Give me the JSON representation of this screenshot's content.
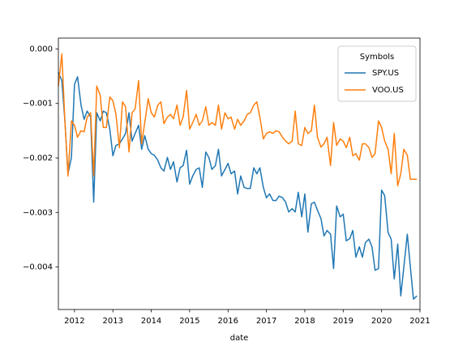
{
  "chart_data": {
    "type": "line",
    "xlabel": "date",
    "x": [
      2011.58,
      2011.67,
      2011.75,
      2011.83,
      2011.92,
      2012.0,
      2012.08,
      2012.17,
      2012.25,
      2012.33,
      2012.42,
      2012.5,
      2012.58,
      2012.67,
      2012.75,
      2012.83,
      2012.92,
      2013.0,
      2013.08,
      2013.17,
      2013.25,
      2013.33,
      2013.42,
      2013.5,
      2013.58,
      2013.67,
      2013.75,
      2013.83,
      2013.92,
      2014.0,
      2014.08,
      2014.17,
      2014.25,
      2014.33,
      2014.42,
      2014.5,
      2014.58,
      2014.67,
      2014.75,
      2014.83,
      2014.92,
      2015.0,
      2015.08,
      2015.17,
      2015.25,
      2015.33,
      2015.42,
      2015.5,
      2015.58,
      2015.67,
      2015.75,
      2015.83,
      2015.92,
      2016.0,
      2016.08,
      2016.17,
      2016.25,
      2016.33,
      2016.42,
      2016.5,
      2016.58,
      2016.67,
      2016.75,
      2016.83,
      2016.92,
      2017.0,
      2017.08,
      2017.17,
      2017.25,
      2017.33,
      2017.42,
      2017.5,
      2017.58,
      2017.67,
      2017.75,
      2017.83,
      2017.92,
      2018.0,
      2018.08,
      2018.17,
      2018.25,
      2018.33,
      2018.42,
      2018.5,
      2018.58,
      2018.67,
      2018.75,
      2018.83,
      2018.92,
      2019.0,
      2019.08,
      2019.17,
      2019.25,
      2019.33,
      2019.42,
      2019.5,
      2019.58,
      2019.67,
      2019.75,
      2019.83,
      2019.92,
      2020.0,
      2020.08,
      2020.17,
      2020.25,
      2020.33,
      2020.42,
      2020.5,
      2020.58,
      2020.67,
      2020.75,
      2020.83,
      2020.92
    ],
    "series": [
      {
        "name": "SPY.US",
        "color": "#1f77b4",
        "values": [
          -0.00043,
          -0.00058,
          -0.00132,
          -0.00229,
          -0.00199,
          -0.00065,
          -0.00051,
          -0.00103,
          -0.00129,
          -0.00114,
          -0.00125,
          -0.00281,
          -0.00117,
          -0.00132,
          -0.00114,
          -0.00117,
          -0.00147,
          -0.00196,
          -0.00177,
          -0.00174,
          -0.00165,
          -0.00155,
          -0.00117,
          -0.00169,
          -0.00155,
          -0.0014,
          -0.00184,
          -0.00159,
          -0.00184,
          -0.00192,
          -0.00195,
          -0.00204,
          -0.00218,
          -0.00224,
          -0.00199,
          -0.00221,
          -0.00207,
          -0.00244,
          -0.00218,
          -0.00214,
          -0.00186,
          -0.00248,
          -0.00233,
          -0.00221,
          -0.00218,
          -0.00254,
          -0.00189,
          -0.00199,
          -0.00221,
          -0.00214,
          -0.00184,
          -0.00233,
          -0.00221,
          -0.0021,
          -0.00229,
          -0.00224,
          -0.00266,
          -0.00233,
          -0.00254,
          -0.00256,
          -0.00256,
          -0.00218,
          -0.00229,
          -0.00218,
          -0.00254,
          -0.00273,
          -0.00266,
          -0.00278,
          -0.00278,
          -0.0027,
          -0.00273,
          -0.00281,
          -0.00299,
          -0.00293,
          -0.00299,
          -0.00263,
          -0.00308,
          -0.00266,
          -0.00336,
          -0.00284,
          -0.00281,
          -0.00296,
          -0.00311,
          -0.00343,
          -0.00333,
          -0.0034,
          -0.00403,
          -0.00288,
          -0.00308,
          -0.00303,
          -0.00352,
          -0.00348,
          -0.00333,
          -0.00382,
          -0.00363,
          -0.00382,
          -0.00355,
          -0.00349,
          -0.00363,
          -0.00406,
          -0.00403,
          -0.00259,
          -0.00269,
          -0.00337,
          -0.00349,
          -0.00422,
          -0.00358,
          -0.00453,
          -0.004,
          -0.0034,
          -0.004,
          -0.00459,
          -0.00453
        ]
      },
      {
        "name": "VOO.US",
        "color": "#ff7f0e",
        "values": [
          -0.00068,
          -9e-05,
          -0.00132,
          -0.00233,
          -0.00132,
          -0.0014,
          -0.00162,
          -0.0015,
          -0.00152,
          -0.00125,
          -0.00117,
          -0.00233,
          -0.00068,
          -0.00085,
          -0.00144,
          -0.00144,
          -0.00088,
          -0.00095,
          -0.0012,
          -0.00181,
          -0.00097,
          -0.00106,
          -0.00189,
          -0.00117,
          -0.0011,
          -0.00058,
          -0.00174,
          -0.00135,
          -0.00091,
          -0.00117,
          -0.00125,
          -0.00103,
          -0.00097,
          -0.00137,
          -0.00125,
          -0.0012,
          -0.00128,
          -0.00103,
          -0.0014,
          -0.00125,
          -0.00076,
          -0.00147,
          -0.00135,
          -0.0012,
          -0.0014,
          -0.00132,
          -0.00106,
          -0.0014,
          -0.00135,
          -0.0014,
          -0.00103,
          -0.00147,
          -0.00117,
          -0.00128,
          -0.00125,
          -0.00147,
          -0.00129,
          -0.0014,
          -0.00132,
          -0.0012,
          -0.00117,
          -0.00103,
          -0.00097,
          -0.00125,
          -0.00165,
          -0.00155,
          -0.00152,
          -0.00155,
          -0.0015,
          -0.00152,
          -0.00162,
          -0.00169,
          -0.00174,
          -0.00169,
          -0.00114,
          -0.00174,
          -0.00177,
          -0.00144,
          -0.00155,
          -0.0015,
          -0.00103,
          -0.00162,
          -0.0018,
          -0.00174,
          -0.00162,
          -0.00214,
          -0.00135,
          -0.00177,
          -0.00165,
          -0.00169,
          -0.00181,
          -0.00162,
          -0.00196,
          -0.00192,
          -0.00204,
          -0.00174,
          -0.00174,
          -0.00181,
          -0.00199,
          -0.00192,
          -0.00132,
          -0.00144,
          -0.00169,
          -0.00184,
          -0.00229,
          -0.00155,
          -0.00251,
          -0.00229,
          -0.00184,
          -0.00195,
          -0.00239,
          -0.00239,
          -0.00239
        ]
      }
    ],
    "xlim": [
      2011.58,
      2021.0
    ],
    "xticks": [
      2012,
      2013,
      2014,
      2015,
      2016,
      2017,
      2018,
      2019,
      2020,
      2021
    ],
    "ylim": [
      -0.00478,
      0.0002
    ],
    "yticks": [
      {
        "value": 0,
        "label": "0.000"
      },
      {
        "value": -0.001,
        "label": "−0.001"
      },
      {
        "value": -0.002,
        "label": "−0.002"
      },
      {
        "value": -0.003,
        "label": "−0.003"
      },
      {
        "value": -0.004,
        "label": "−0.004"
      }
    ],
    "legend_title": "Symbols",
    "legend_loc": "upper right",
    "grid": false
  }
}
